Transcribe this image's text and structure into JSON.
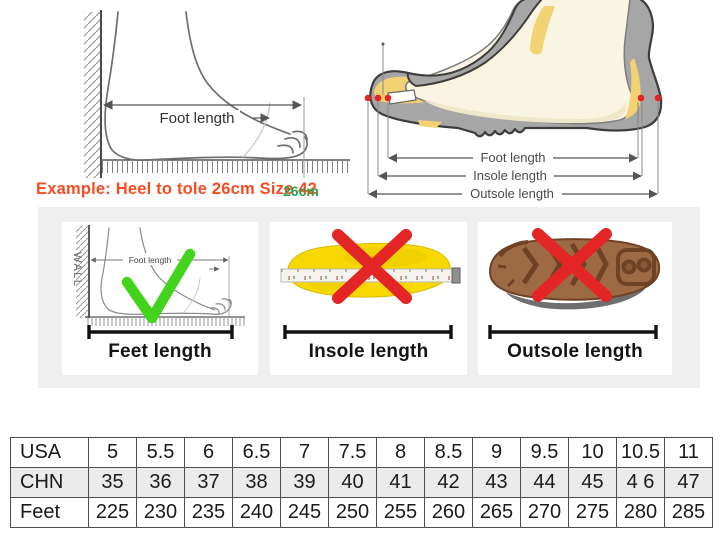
{
  "measure_diagram": {
    "foot_length_label": "Foot length",
    "example_text": "Example: Heel to tole 26cm Size 42",
    "ruler_value": "26cm"
  },
  "shoe_diagram": {
    "foot_length_label": "Foot length",
    "insole_length_label": "Insole length",
    "outsole_length_label": "Outsole length"
  },
  "panels": {
    "feet": {
      "wall_label": "WALL",
      "diagram_label": "Foot length",
      "caption": "Feet length"
    },
    "insole": {
      "caption": "Insole length"
    },
    "outsole": {
      "caption": "Outsole length"
    }
  },
  "size_table": {
    "rows": [
      {
        "label": "USA",
        "values": [
          "5",
          "5.5",
          "6",
          "6.5",
          "7",
          "7.5",
          "8",
          "8.5",
          "9",
          "9.5",
          "10",
          "10.5",
          "11"
        ]
      },
      {
        "label": "CHN",
        "values": [
          "35",
          "36",
          "37",
          "38",
          "39",
          "40",
          "41",
          "42",
          "43",
          "44",
          "45",
          "4 6",
          "47"
        ]
      },
      {
        "label": "Feet",
        "values": [
          "225",
          "230",
          "235",
          "240",
          "245",
          "250",
          "255",
          "260",
          "265",
          "270",
          "275",
          "280",
          "285"
        ]
      }
    ]
  },
  "colors": {
    "example_red": "#f94b21",
    "ruler_green": "#2ba04e",
    "check_green": "#42d31d",
    "cross_red": "#e42525",
    "insole_yellow": "#f7d802",
    "outsole_brown": "#9c6b46",
    "shoe_gray": "#a6a6a6",
    "foot_cream": "#faf5e2",
    "band_gray": "#efefef"
  }
}
